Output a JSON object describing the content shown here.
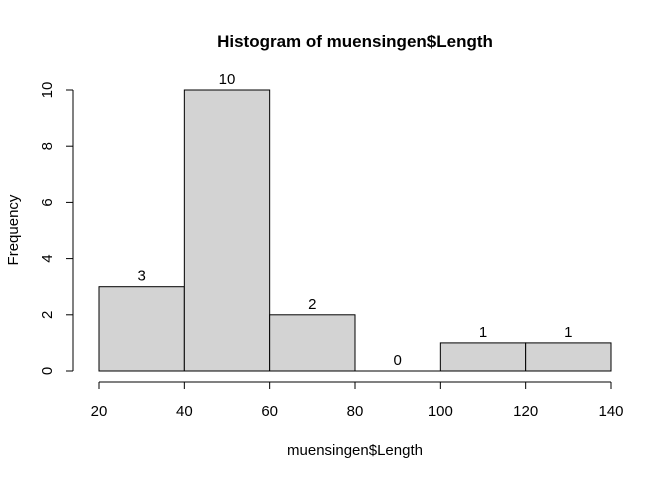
{
  "chart_data": {
    "type": "bar",
    "title": "Histogram of muensingen$Length",
    "xlabel": "muensingen$Length",
    "ylabel": "Frequency",
    "bins": [
      {
        "start": 20,
        "end": 40,
        "value": 3
      },
      {
        "start": 40,
        "end": 60,
        "value": 10
      },
      {
        "start": 60,
        "end": 80,
        "value": 2
      },
      {
        "start": 80,
        "end": 100,
        "value": 0
      },
      {
        "start": 100,
        "end": 120,
        "value": 1
      },
      {
        "start": 120,
        "end": 140,
        "value": 1
      }
    ],
    "xlim": [
      20,
      140
    ],
    "ylim": [
      0,
      10
    ],
    "x_ticks": [
      20,
      40,
      60,
      80,
      100,
      120,
      140
    ],
    "y_ticks": [
      0,
      2,
      4,
      6,
      8,
      10
    ],
    "bar_fill": "#d3d3d3",
    "bar_stroke": "#000000",
    "grid": false,
    "legend": false
  }
}
